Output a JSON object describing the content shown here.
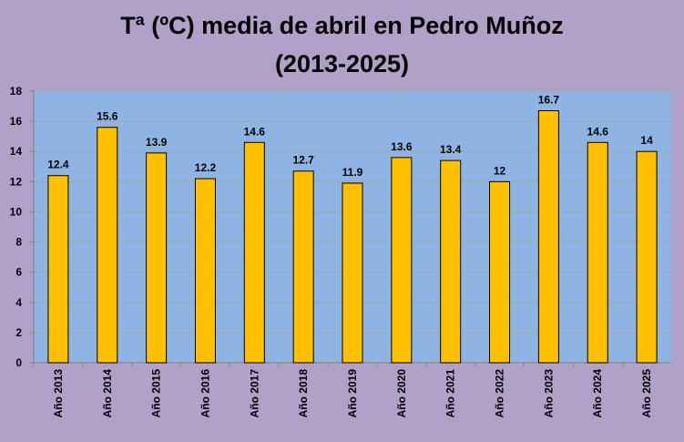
{
  "chart_data": {
    "type": "bar",
    "title_lines": [
      "Tª (ºC) media de abril en Pedro Muñoz",
      "(2013-2025)"
    ],
    "categories": [
      "Año 2013",
      "Año 2014",
      "Año 2015",
      "Año 2016",
      "Año 2017",
      "Año 2018",
      "Año 2019",
      "Año 2020",
      "Año 2021",
      "Año 2022",
      "Año 2023",
      "Año 2024",
      "Año 2025"
    ],
    "values": [
      12.4,
      15.6,
      13.9,
      12.2,
      14.6,
      12.7,
      11.9,
      13.6,
      13.4,
      12,
      16.7,
      14.6,
      14
    ],
    "value_labels": [
      "12.4",
      "15.6",
      "13.9",
      "12.2",
      "14.6",
      "12.7",
      "11.9",
      "13.6",
      "13.4",
      "12",
      "16.7",
      "14.6",
      "14"
    ],
    "y_ticks": [
      0,
      2,
      4,
      6,
      8,
      10,
      12,
      14,
      16,
      18
    ],
    "ylim": [
      0,
      18
    ],
    "grid": true,
    "xlabel": "",
    "ylabel": "",
    "colors": {
      "background": "#b1a0c7",
      "plot_area": "#8db4e2",
      "bar_fill": "#ffc000",
      "bar_stroke": "#000000",
      "gridline": "#a6a6a6"
    }
  }
}
